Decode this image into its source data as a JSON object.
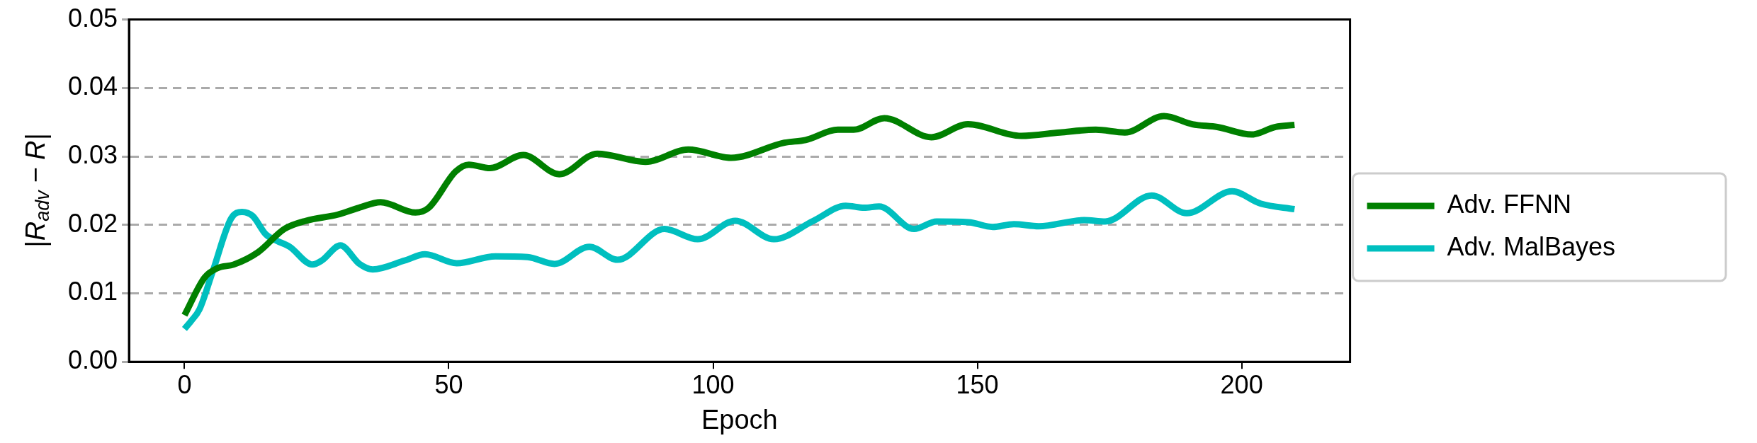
{
  "chart_data": {
    "type": "line",
    "xlabel": "Epoch",
    "ylabel": "|R$_{adv}$ − R|",
    "xlim": [
      -10.5,
      220.5
    ],
    "xticks": [
      0,
      50,
      100,
      150,
      200
    ],
    "ylim": [
      0,
      0.05
    ],
    "yticks": [
      {
        "value": 0,
        "label": "0.00"
      },
      {
        "value": 0.01,
        "label": "0.01"
      },
      {
        "value": 0.02,
        "label": "0.02"
      },
      {
        "value": 0.03,
        "label": "0.03"
      },
      {
        "value": 0.04,
        "label": "0.04"
      },
      {
        "value": 0.05,
        "label": "0.05"
      }
    ],
    "grid": "y",
    "legend": "right",
    "marker": "none",
    "line_style": "solid",
    "series": [
      {
        "name": "Adv. FFNN",
        "color": "#008000",
        "x": [
          0,
          3.8,
          6.3,
          9.3,
          13.9,
          18.9,
          23,
          29,
          33,
          37.1,
          43.7,
          46.2,
          51.3,
          53.8,
          57.8,
          64.1,
          70.9,
          78.1,
          87.2,
          95.3,
          103.4,
          113.5,
          117.5,
          123.6,
          126.6,
          132.4,
          141.3,
          148.2,
          158.3,
          165.6,
          172.4,
          177.9,
          185.3,
          190.7,
          195.4,
          201.9,
          206.4,
          210
        ],
        "values": [
          0.0068,
          0.0123,
          0.0137,
          0.0142,
          0.016,
          0.0194,
          0.0206,
          0.0215,
          0.0225,
          0.0233,
          0.0218,
          0.0225,
          0.0278,
          0.0288,
          0.0283,
          0.0302,
          0.0274,
          0.0304,
          0.0292,
          0.031,
          0.0298,
          0.032,
          0.0324,
          0.0339,
          0.0339,
          0.0356,
          0.0328,
          0.0347,
          0.033,
          0.0335,
          0.0339,
          0.0335,
          0.0359,
          0.0347,
          0.0343,
          0.0332,
          0.0343,
          0.0346
        ]
      },
      {
        "name": "Adv. MalBayes",
        "color": "#00bfbf",
        "x": [
          0,
          1.3,
          2.8,
          5.3,
          8.8,
          10.9,
          12.9,
          15.4,
          17.4,
          19.9,
          24.2,
          26,
          29.5,
          33.1,
          35.6,
          41.7,
          45.5,
          51.5,
          58.8,
          64.9,
          70,
          76.6,
          81.9,
          90.8,
          97.1,
          104.2,
          111.5,
          119,
          125.1,
          128.6,
          131.4,
          138,
          142.3,
          148.3,
          152.9,
          156.9,
          161.6,
          170.2,
          174.2,
          183,
          189.6,
          198.2,
          203.6,
          210
        ],
        "values": [
          0.0048,
          0.006,
          0.0076,
          0.0131,
          0.0209,
          0.0219,
          0.0213,
          0.0186,
          0.0177,
          0.0168,
          0.0142,
          0.0148,
          0.017,
          0.0143,
          0.0135,
          0.0148,
          0.0157,
          0.0144,
          0.0154,
          0.0153,
          0.0143,
          0.0168,
          0.0149,
          0.0194,
          0.0179,
          0.0206,
          0.0179,
          0.0206,
          0.0228,
          0.0225,
          0.0227,
          0.0194,
          0.0205,
          0.0204,
          0.0197,
          0.0201,
          0.0198,
          0.0207,
          0.0205,
          0.0243,
          0.0217,
          0.0249,
          0.0231,
          0.0223
        ]
      }
    ]
  }
}
